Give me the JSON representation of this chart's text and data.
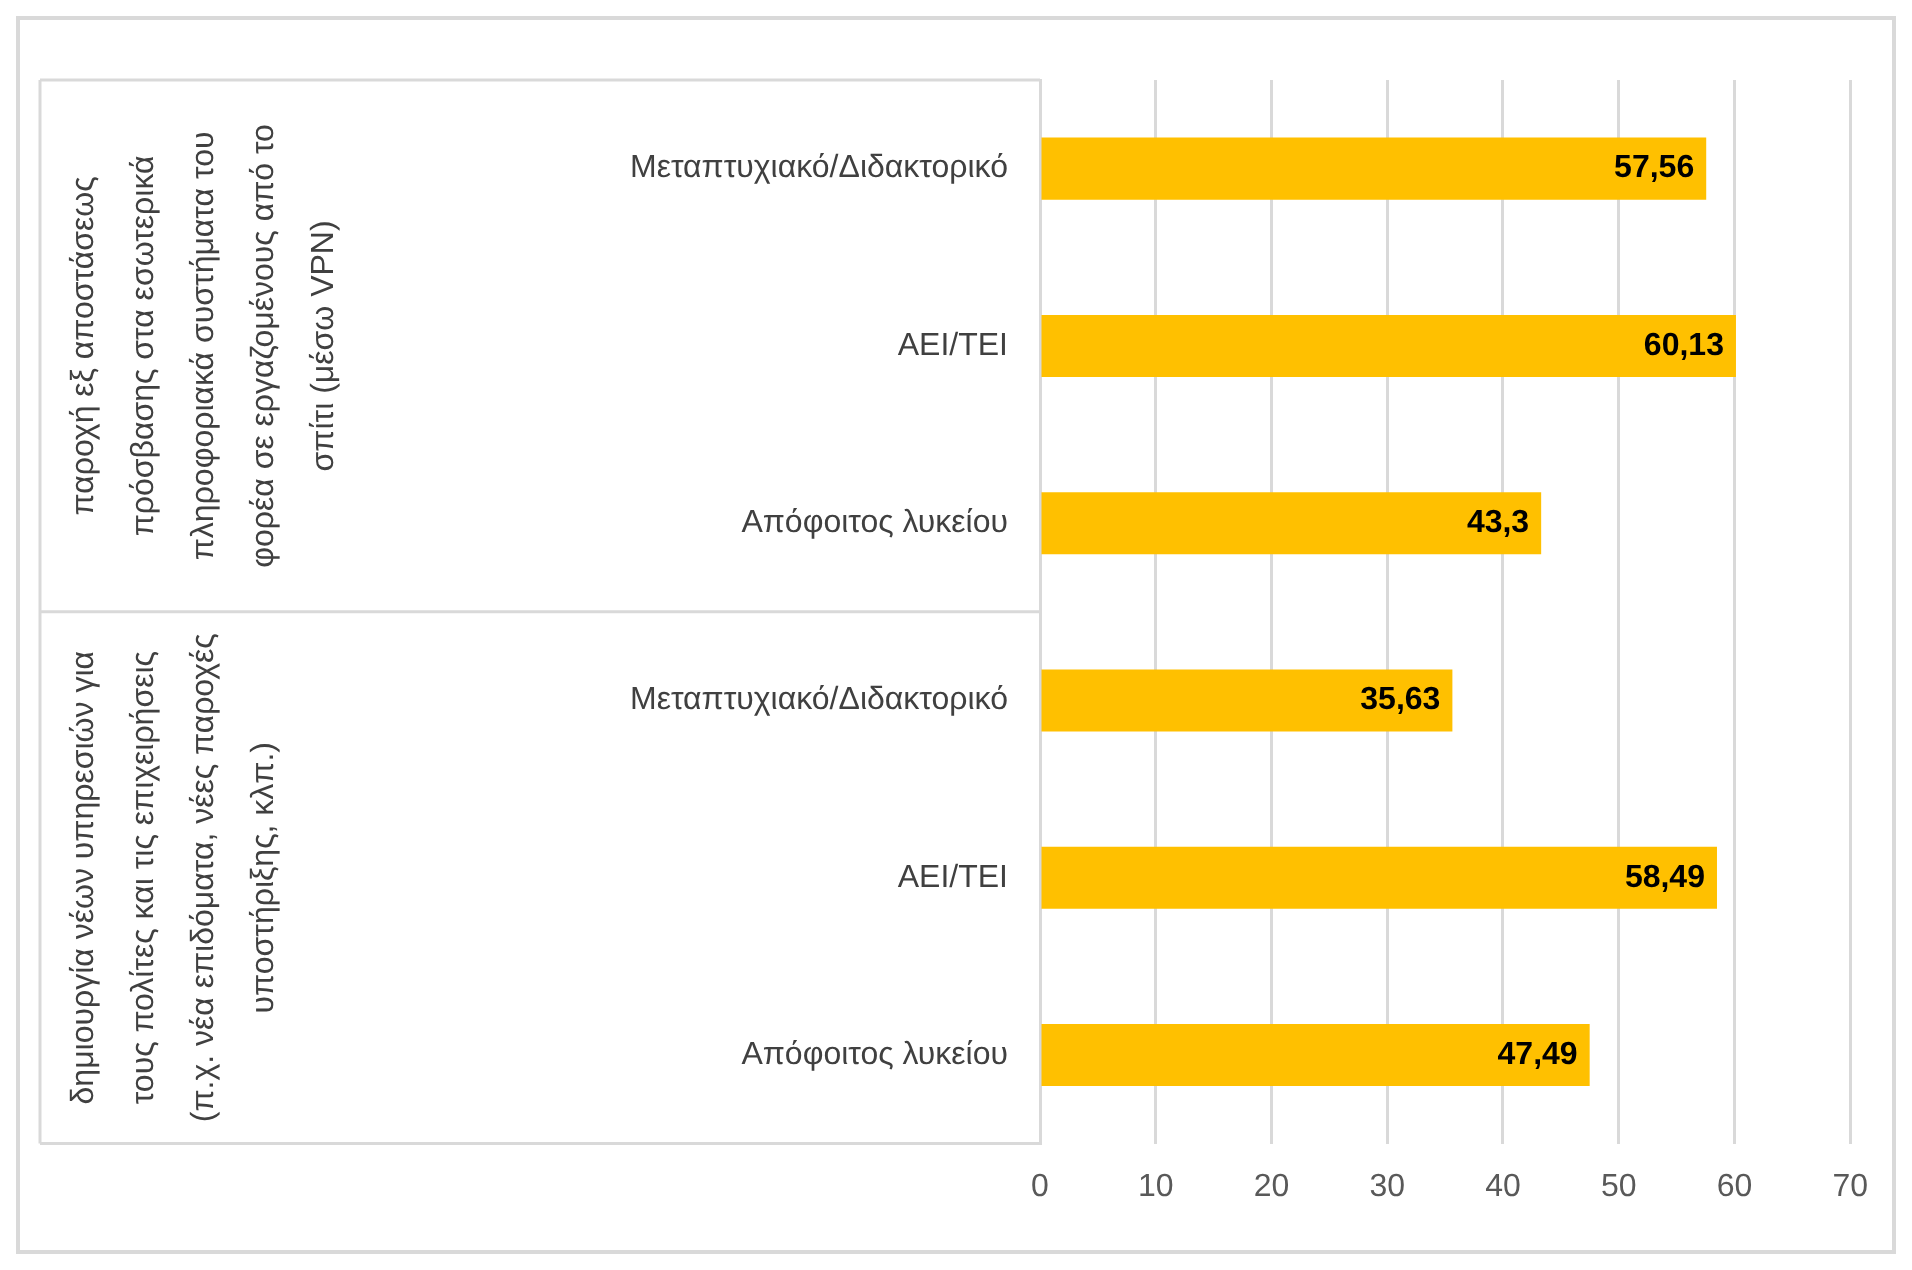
{
  "chart_data": {
    "type": "bar",
    "orientation": "horizontal",
    "categories": [
      "Μεταπτυχιακό/Διδακτορικό",
      "ΑΕΙ/ΤΕΙ",
      "Απόφοιτος λυκείου",
      "Μεταπτυχιακό/Διδακτορικό",
      "ΑΕΙ/ΤΕΙ",
      "Απόφοιτος λυκείου"
    ],
    "values": [
      57.56,
      60.13,
      43.3,
      35.63,
      58.49,
      47.49
    ],
    "value_labels": [
      "57,56",
      "60,13",
      "43,3",
      "35,63",
      "58,49",
      "47,49"
    ],
    "color": "#ffc000",
    "xlim": [
      0,
      70
    ],
    "xticks": [
      0,
      10,
      20,
      30,
      40,
      50,
      60,
      70
    ],
    "grid": "x",
    "legend": false,
    "annotations": [
      "παροχή εξ αποστάσεως πρόσβασης στα εσωτερικά πληροφοριακά συστήματα του φορέα σε εργαζομένους από το σπίτι (μέσω VPN)",
      "δημιουργία νέων υπηρεσιών για τους πολίτες και τις επιχειρήσεις (π.χ. νέα επιδόματα, νέες παροχές υποστήριξης, κλπ.)"
    ]
  }
}
